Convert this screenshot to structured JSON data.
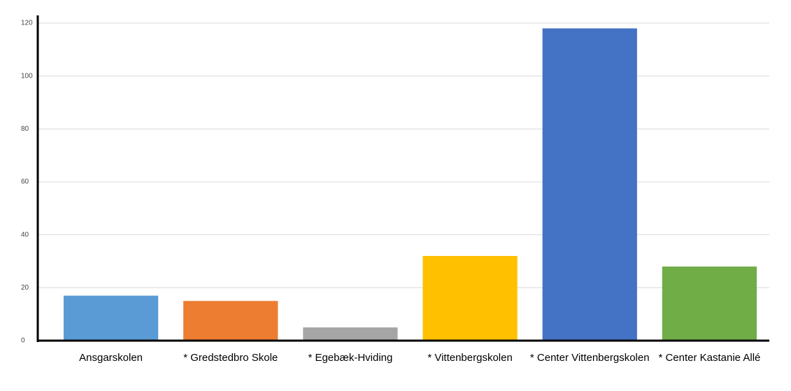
{
  "chart_data": {
    "type": "bar",
    "categories": [
      "Ansgarskolen",
      "* Gredstedbro Skole",
      "* Egebæk-Hviding",
      "* Vittenbergskolen",
      "* Center Vittenbergskolen",
      "* Center Kastanie Allé"
    ],
    "values": [
      17,
      15,
      5,
      32,
      118,
      28
    ],
    "colors": [
      "#5b9bd5",
      "#ed7d31",
      "#a5a5a5",
      "#ffc000",
      "#4472c4",
      "#70ad47"
    ],
    "ylim": [
      0,
      120
    ],
    "yticks": [
      0,
      20,
      40,
      60,
      80,
      100,
      120
    ],
    "grid": true
  }
}
